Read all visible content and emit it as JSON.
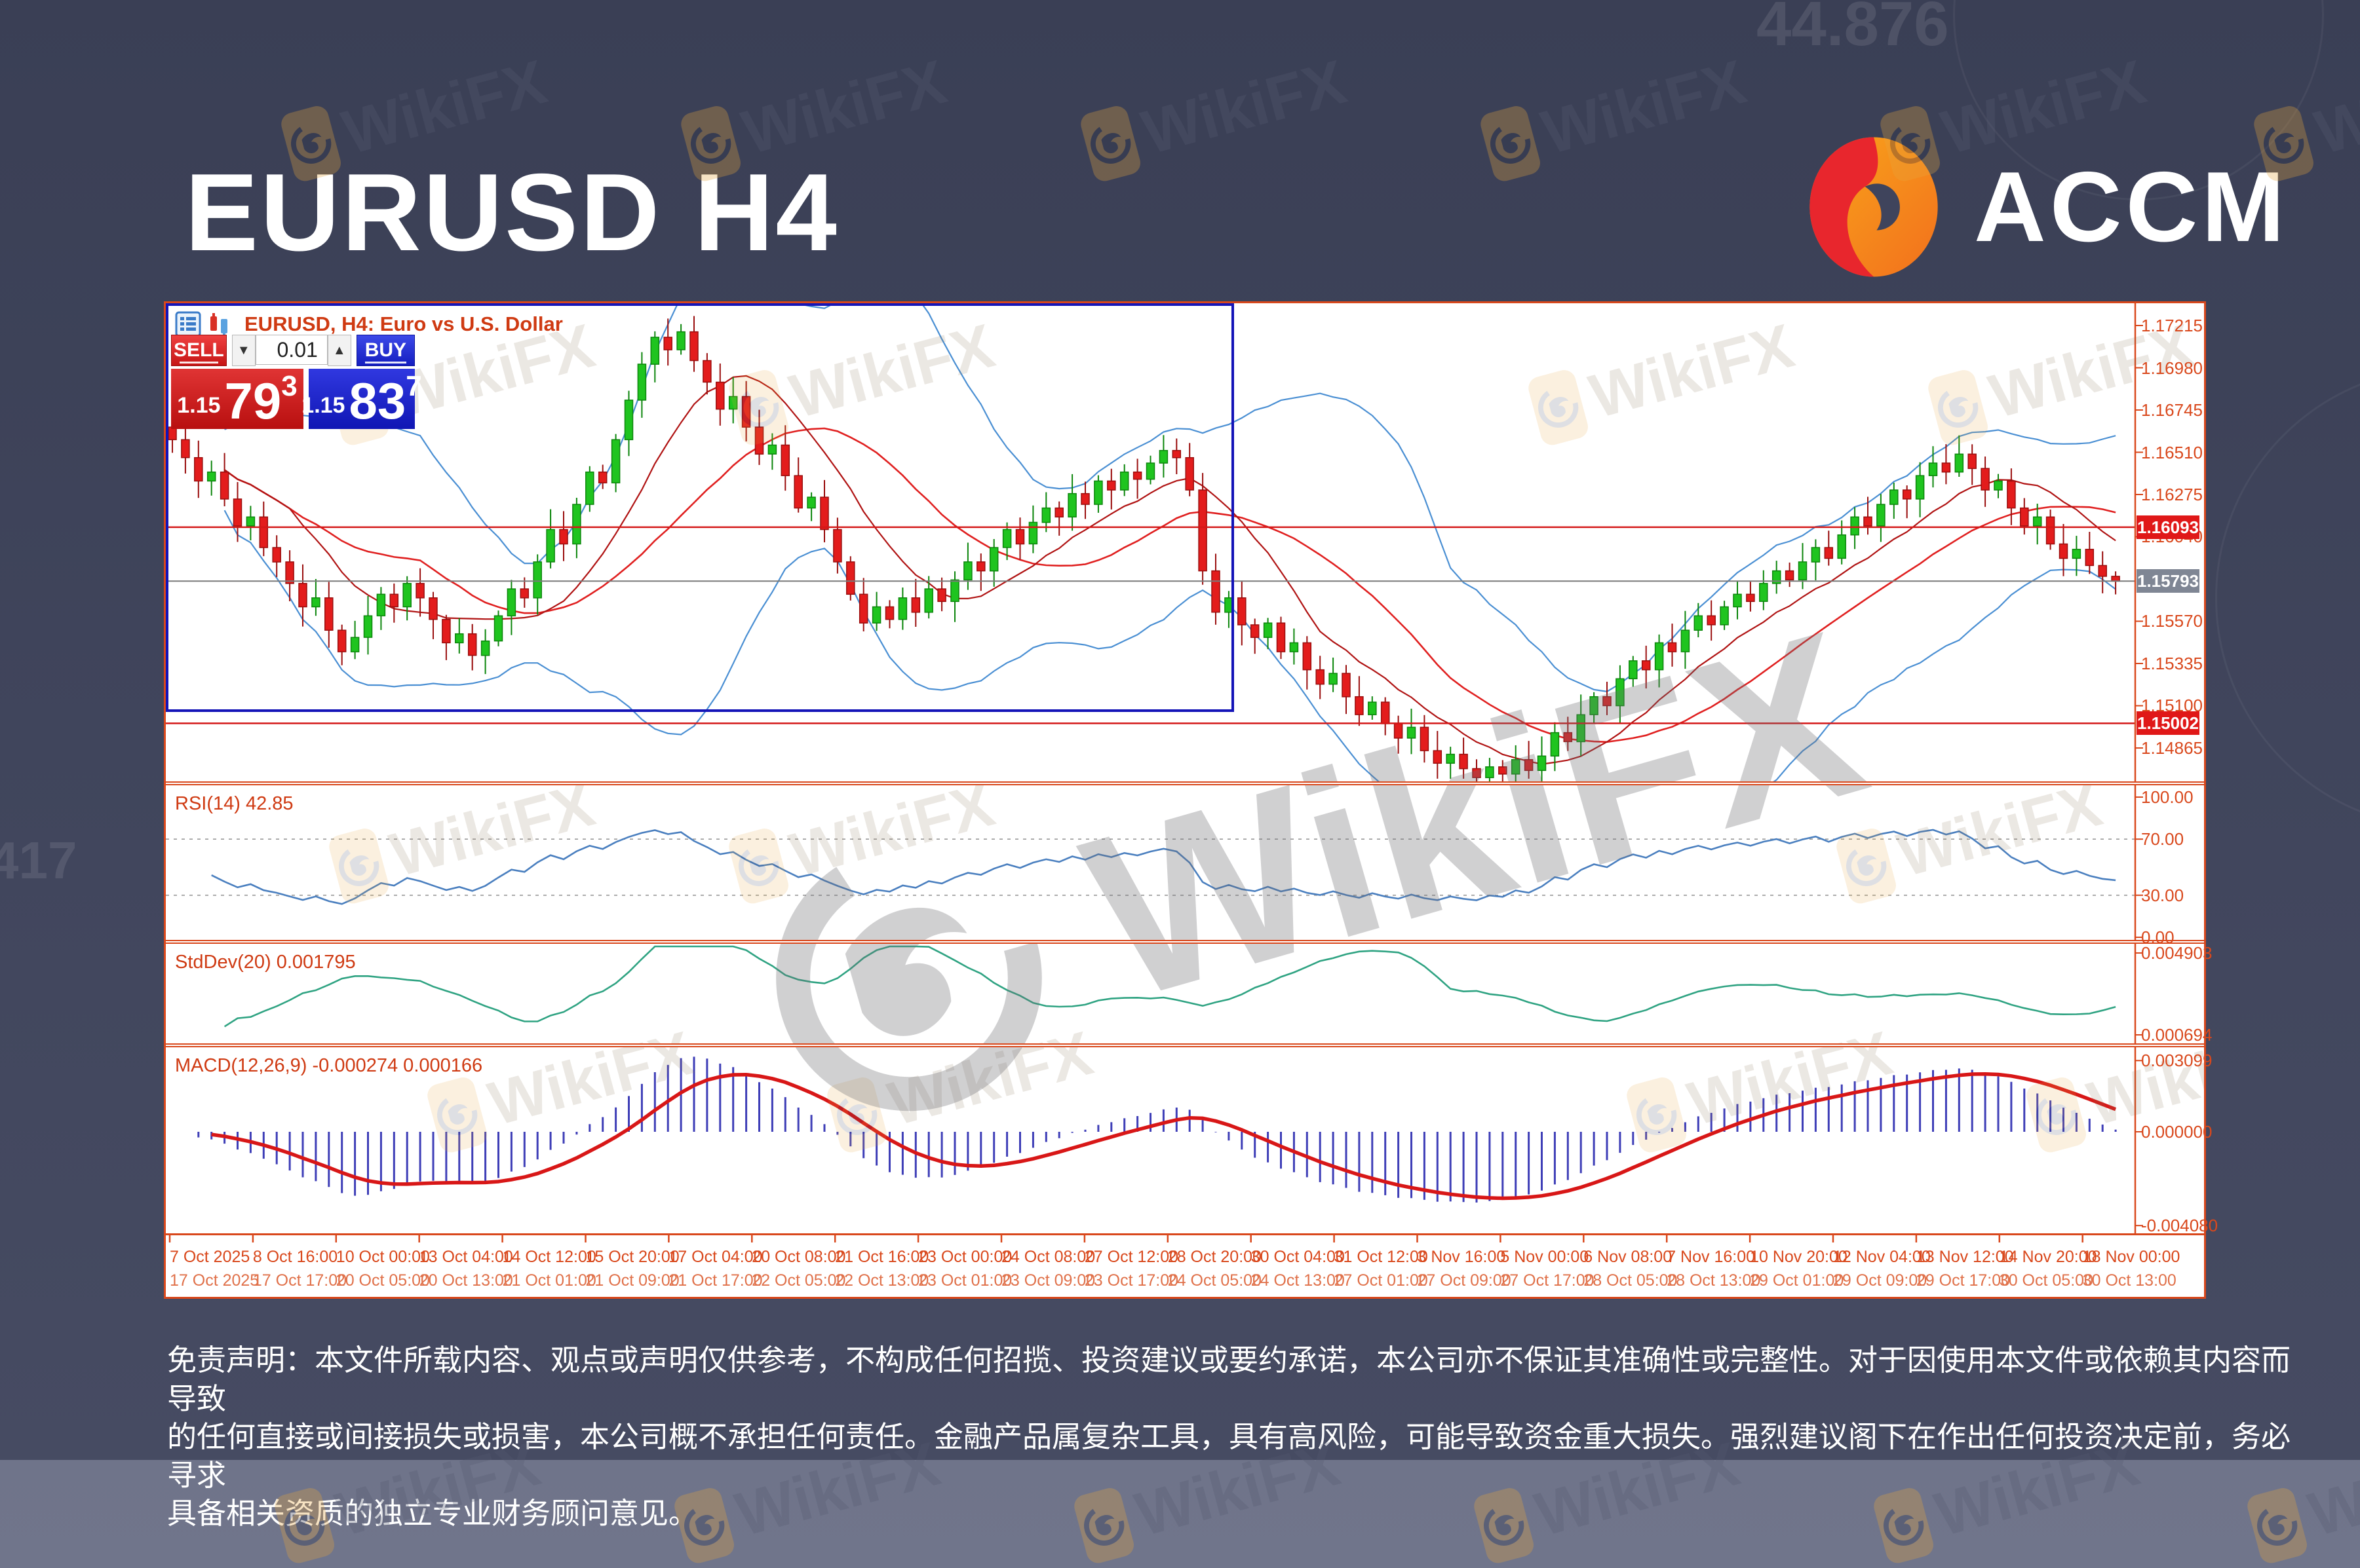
{
  "page": {
    "title": "EURUSD H4",
    "background": "#3f445c",
    "faint_topright": "44.876",
    "faint_left": "417"
  },
  "brand": {
    "name": "ACCM",
    "logo_orange": "#f7941d",
    "logo_red": "#e8262d"
  },
  "watermark": {
    "label": "WikiFX"
  },
  "chart_window": {
    "header": {
      "symbol_title": "EURUSD, H4: Euro vs U.S. Dollar",
      "icons": [
        "market-watch-icon",
        "chart-type-icon"
      ]
    },
    "trade_widget": {
      "sell_label": "SELL",
      "buy_label": "BUY",
      "volume": "0.01",
      "volume_down": "▼",
      "volume_up": "▲",
      "sell_price": {
        "prefix": "1.15",
        "big": "79",
        "sup": "3"
      },
      "buy_price": {
        "prefix": "1.15",
        "big": "83",
        "sup": "7"
      }
    },
    "panel_labels": {
      "rsi": "RSI(14) 42.85",
      "stddev": "StdDev(20) 0.001795",
      "macd": "MACD(12,26,9) -0.000274 0.000166"
    }
  },
  "chart_data": {
    "type": "candlestick",
    "symbol": "EURUSD",
    "timeframe": "H4",
    "first_open": 1.1665,
    "closes": [
      1.1658,
      1.1648,
      1.1635,
      1.164,
      1.1625,
      1.161,
      1.1615,
      1.1598,
      1.159,
      1.1578,
      1.1565,
      1.157,
      1.1552,
      1.154,
      1.1548,
      1.156,
      1.1572,
      1.1565,
      1.1578,
      1.157,
      1.1558,
      1.1545,
      1.155,
      1.1538,
      1.1546,
      1.156,
      1.1575,
      1.157,
      1.159,
      1.1608,
      1.16,
      1.1622,
      1.164,
      1.1634,
      1.1658,
      1.168,
      1.17,
      1.1715,
      1.1708,
      1.1718,
      1.1702,
      1.169,
      1.1675,
      1.1682,
      1.1665,
      1.165,
      1.1655,
      1.1638,
      1.162,
      1.1626,
      1.1608,
      1.159,
      1.1572,
      1.1556,
      1.1565,
      1.1558,
      1.157,
      1.1562,
      1.1575,
      1.1568,
      1.158,
      1.159,
      1.1585,
      1.1598,
      1.1608,
      1.16,
      1.1612,
      1.162,
      1.1615,
      1.1628,
      1.1622,
      1.1635,
      1.163,
      1.164,
      1.1636,
      1.1645,
      1.1652,
      1.1648,
      1.163,
      1.1585,
      1.1562,
      1.157,
      1.1555,
      1.1548,
      1.1556,
      1.154,
      1.1545,
      1.153,
      1.1522,
      1.1528,
      1.1515,
      1.1505,
      1.1512,
      1.15,
      1.1492,
      1.1498,
      1.1485,
      1.1478,
      1.1483,
      1.1475,
      1.147,
      1.1476,
      1.1472,
      1.148,
      1.1474,
      1.1482,
      1.1495,
      1.149,
      1.1505,
      1.1515,
      1.151,
      1.1525,
      1.1535,
      1.153,
      1.1545,
      1.154,
      1.1552,
      1.156,
      1.1555,
      1.1565,
      1.1572,
      1.1568,
      1.1578,
      1.1585,
      1.158,
      1.159,
      1.1598,
      1.1592,
      1.1605,
      1.1615,
      1.161,
      1.1622,
      1.163,
      1.1625,
      1.1638,
      1.1645,
      1.164,
      1.165,
      1.1642,
      1.163,
      1.1635,
      1.162,
      1.161,
      1.1615,
      1.16,
      1.1592,
      1.1597,
      1.1588,
      1.1582,
      1.15793
    ],
    "price_axis": {
      "top": 1.17339,
      "bottom": 1.14679,
      "decimals": 5,
      "ticks": [
        1.17215,
        1.1698,
        1.16745,
        1.1651,
        1.16275,
        1.1604,
        1.1557,
        1.15335,
        1.151,
        1.14865
      ]
    },
    "badges": [
      {
        "value": 1.16093,
        "label": "1.16093",
        "type": "red"
      },
      {
        "value": 1.15793,
        "label": "1.15793",
        "type": "gray"
      },
      {
        "value": 1.15002,
        "label": "1.15002",
        "type": "red"
      }
    ],
    "hlines": [
      {
        "value": 1.16093,
        "color": "#d41717",
        "width": 2.5
      },
      {
        "value": 1.15002,
        "color": "#d41717",
        "width": 2.5
      },
      {
        "value": 1.15793,
        "color": "#7a7a7a",
        "width": 2
      }
    ],
    "selection_box": {
      "to_bar": 81,
      "bottom_value": 1.15095
    },
    "indicators": {
      "bollinger": {
        "period": 20,
        "deviation": 2
      },
      "sma_fast_period": 10,
      "rsi": {
        "period": 14,
        "current": 42.85,
        "levels": [
          70,
          30
        ],
        "ticks": [
          100,
          70,
          30,
          0
        ],
        "range": [
          0,
          100
        ]
      },
      "stddev": {
        "period": 20,
        "current": 0.001795,
        "ticks": [
          {
            "v": 0.004903,
            "label": "0.004903"
          },
          {
            "v": 0.000694,
            "label": "0.000694"
          }
        ]
      },
      "macd": {
        "fast": 12,
        "slow": 26,
        "signal": 9,
        "current_main": -0.000274,
        "current_signal": 0.000166,
        "ticks": [
          {
            "v": 0.003099,
            "label": "0.003099"
          },
          {
            "v": 0,
            "label": "0.000000"
          },
          {
            "v": -0.00408,
            "label": "-0.004080"
          }
        ]
      }
    },
    "time_axis": {
      "row1": [
        "7 Oct 2025",
        "8 Oct 16:00",
        "10 Oct 00:00",
        "13 Oct 04:00",
        "14 Oct 12:00",
        "15 Oct 20:00",
        "17 Oct 04:00",
        "20 Oct 08:00",
        "21 Oct 16:00",
        "23 Oct 00:00",
        "24 Oct 08:00",
        "27 Oct 12:00",
        "28 Oct 20:00",
        "30 Oct 04:00",
        "31 Oct 12:00",
        "3 Nov 16:00",
        "5 Nov 00:00",
        "6 Nov 08:00",
        "7 Nov 16:00",
        "10 Nov 20:00",
        "12 Nov 04:00",
        "13 Nov 12:00",
        "14 Nov 20:00",
        "18 Nov 00:00"
      ],
      "row2": [
        "17 Oct 2025",
        "17 Oct 17:00",
        "20 Oct 05:00",
        "20 Oct 13:00",
        "21 Oct 01:00",
        "21 Oct 09:00",
        "21 Oct 17:00",
        "22 Oct 05:00",
        "22 Oct 13:00",
        "23 Oct 01:00",
        "23 Oct 09:00",
        "23 Oct 17:00",
        "24 Oct 05:00",
        "24 Oct 13:00",
        "27 Oct 01:00",
        "27 Oct 09:00",
        "27 Oct 17:00",
        "28 Oct 05:00",
        "28 Oct 13:00",
        "29 Oct 01:00",
        "29 Oct 09:00",
        "29 Oct 17:00",
        "30 Oct 05:00",
        "30 Oct 13:00"
      ]
    },
    "colors": {
      "bull": "#1fc41f",
      "bull_edge": "#0c860c",
      "bear": "#e31c1c",
      "bear_edge": "#9a0e0e",
      "bands": "#4a8fd3",
      "ma_slow": "#e02020",
      "ma_fast": "#b01313",
      "rsi": "#4a7fbf",
      "rsi_level": "#999999",
      "stddev": "#2fa382",
      "macd_bar": "#2a2ab0",
      "macd_signal": "#d81717",
      "axis_text": "#d9481c",
      "separator": "#d9481c",
      "badge_red": "#e01818",
      "badge_gray": "#7f8694",
      "box": "#1414b8"
    }
  },
  "disclaimer": "免责声明：本文件所载内容、观点或声明仅供参考，不构成任何招揽、投资建议或要约承诺，本公司亦不保证其准确性或完整性。对于因使用本文件或依赖其内容而导致\n的任何直接或间接损失或损害，本公司概不承担任何责任。金融产品属复杂工具，具有高风险，可能导致资金重大损失。强烈建议阁下在作出任何投资决定前，务必寻求\n具备相关资质的独立专业财务顾问意见。"
}
